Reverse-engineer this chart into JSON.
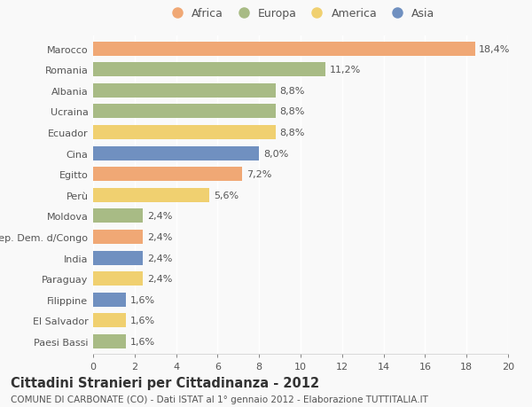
{
  "countries": [
    "Marocco",
    "Romania",
    "Albania",
    "Ucraina",
    "Ecuador",
    "Cina",
    "Egitto",
    "Perù",
    "Moldova",
    "Rep. Dem. d/Congo",
    "India",
    "Paraguay",
    "Filippine",
    "El Salvador",
    "Paesi Bassi"
  ],
  "values": [
    18.4,
    11.2,
    8.8,
    8.8,
    8.8,
    8.0,
    7.2,
    5.6,
    2.4,
    2.4,
    2.4,
    2.4,
    1.6,
    1.6,
    1.6
  ],
  "labels": [
    "18,4%",
    "11,2%",
    "8,8%",
    "8,8%",
    "8,8%",
    "8,0%",
    "7,2%",
    "5,6%",
    "2,4%",
    "2,4%",
    "2,4%",
    "2,4%",
    "1,6%",
    "1,6%",
    "1,6%"
  ],
  "continents": [
    "Africa",
    "Europa",
    "Europa",
    "Europa",
    "America",
    "Asia",
    "Africa",
    "America",
    "Europa",
    "Africa",
    "Asia",
    "America",
    "Asia",
    "America",
    "Europa"
  ],
  "colors": {
    "Africa": "#F0A875",
    "Europa": "#A8BB85",
    "America": "#F0D070",
    "Asia": "#7090C0"
  },
  "legend_order": [
    "Africa",
    "Europa",
    "America",
    "Asia"
  ],
  "xlim": [
    0,
    20
  ],
  "xticks": [
    0,
    2,
    4,
    6,
    8,
    10,
    12,
    14,
    16,
    18,
    20
  ],
  "title": "Cittadini Stranieri per Cittadinanza - 2012",
  "subtitle": "COMUNE DI CARBONATE (CO) - Dati ISTAT al 1° gennaio 2012 - Elaborazione TUTTITALIA.IT",
  "background_color": "#f9f9f9",
  "bar_height": 0.68,
  "label_fontsize": 8,
  "title_fontsize": 10.5,
  "subtitle_fontsize": 7.5,
  "tick_fontsize": 8,
  "legend_fontsize": 9
}
